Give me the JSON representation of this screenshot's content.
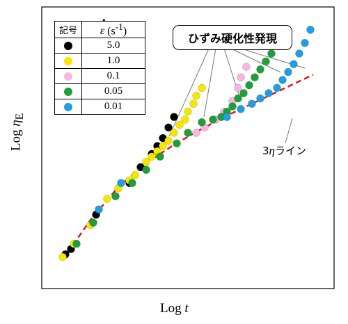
{
  "chart_data": {
    "type": "scatter",
    "xlabel_prefix": "Log",
    "xlabel_var": "t",
    "ylabel_prefix": "Log",
    "ylabel_var": "η",
    "ylabel_sub": "E",
    "grid": false,
    "legend_position": "top-left",
    "legend": {
      "header_symbol": "記号",
      "header_rate": "ε",
      "header_unit": "(s",
      "header_unit_exp": "-1",
      "header_unit_close": ")"
    },
    "annotation": "ひずみ硬化性発現",
    "line_label_prefix": "3",
    "line_label_eta": "η",
    "line_label_suffix": "ライン",
    "xlim": [
      0,
      10
    ],
    "ylim": [
      0,
      10
    ],
    "reference_line": {
      "name": "3ηライン",
      "color": "#e8141b",
      "style": "dashed",
      "x": [
        0.5,
        1.5,
        2.5,
        3.5,
        4.5,
        5.5,
        6.5,
        7.5,
        8.5,
        9.5
      ],
      "y": [
        0.7,
        2.2,
        3.45,
        4.35,
        5.05,
        5.65,
        6.2,
        6.7,
        7.2,
        7.7
      ]
    },
    "series": [
      {
        "name": "5.0",
        "color": "#000000",
        "x": [
          0.6,
          0.8,
          1.7,
          2.9,
          3.3,
          3.7,
          3.9,
          4.1,
          4.3,
          4.5
        ],
        "y": [
          0.9,
          1.1,
          2.4,
          3.6,
          4.2,
          4.7,
          5.0,
          5.3,
          5.7,
          6.1
        ]
      },
      {
        "name": "1.0",
        "color": "#f7e600",
        "x": [
          0.5,
          0.9,
          1.5,
          2.1,
          2.5,
          2.9,
          3.1,
          3.5,
          3.7,
          3.9,
          4.1,
          4.3,
          4.5,
          4.7,
          4.9,
          5.0,
          5.2,
          5.3,
          5.5
        ],
        "y": [
          0.8,
          1.3,
          2.0,
          3.0,
          3.4,
          3.7,
          3.9,
          4.4,
          4.6,
          4.8,
          5.0,
          5.2,
          5.5,
          5.8,
          6.0,
          6.3,
          6.6,
          6.9,
          7.2
        ]
      },
      {
        "name": "0.1",
        "color": "#f6b6e0",
        "x": [
          5.3,
          5.6,
          6.0,
          6.3,
          6.6,
          6.8,
          6.9,
          7.1
        ],
        "y": [
          5.5,
          5.7,
          6.0,
          6.3,
          6.7,
          7.2,
          7.6,
          8.0
        ]
      },
      {
        "name": "0.05",
        "color": "#1f9e3a",
        "x": [
          1.0,
          1.6,
          2.4,
          3.0,
          3.5,
          4.0,
          4.6,
          5.0,
          5.5,
          5.9,
          6.2,
          6.4,
          6.6,
          6.8,
          7.0,
          7.2,
          7.4,
          7.6,
          7.8,
          8.0,
          8.2,
          8.4
        ],
        "y": [
          1.3,
          2.1,
          3.1,
          3.6,
          4.1,
          4.6,
          5.1,
          5.5,
          5.9,
          6.0,
          6.1,
          6.3,
          6.5,
          6.8,
          7.0,
          7.3,
          7.6,
          7.9,
          8.2,
          8.5,
          8.8,
          9.1
        ]
      },
      {
        "name": "0.01",
        "color": "#1f9fe0",
        "x": [
          1.8,
          2.6,
          6.4,
          6.9,
          7.3,
          7.6,
          7.9,
          8.2,
          8.4,
          8.6,
          8.8,
          9.0,
          9.2,
          9.4
        ],
        "y": [
          2.6,
          3.6,
          6.1,
          6.4,
          6.6,
          6.8,
          7.0,
          7.2,
          7.5,
          7.8,
          8.1,
          8.5,
          8.9,
          9.4
        ]
      }
    ]
  }
}
